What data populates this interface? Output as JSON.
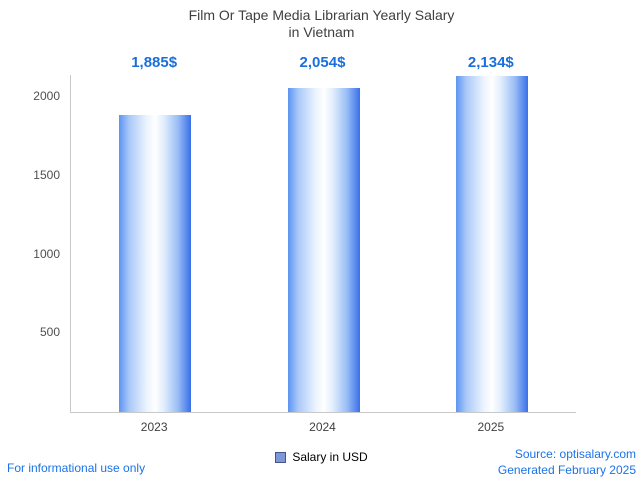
{
  "chart": {
    "title_line1": "Film Or Tape Media Librarian Yearly Salary",
    "title_line2": "in Vietnam"
  },
  "chart_data": {
    "type": "bar",
    "title": "Film Or Tape Media Librarian Yearly Salary in Vietnam",
    "categories": [
      "2023",
      "2024",
      "2025"
    ],
    "series": [
      {
        "name": "Salary in USD",
        "values": [
          1885,
          2054,
          2134
        ]
      }
    ],
    "value_labels": [
      "1,885$",
      "2,054$",
      "2,134$"
    ],
    "xlabel": "",
    "ylabel": "",
    "yticks": [
      500,
      1000,
      1500,
      2000
    ],
    "ylim": [
      0,
      2140
    ],
    "grid": false,
    "legend_position": "bottom",
    "bar_style": "horizontal blue-white-blue cylinder gradient"
  },
  "legend": {
    "label": "Salary in USD"
  },
  "footer": {
    "left": "For informational use only",
    "source": "Source: optisalary.com",
    "generated": "Generated February 2025"
  },
  "colors": {
    "accent_blue": "#1a73e8",
    "value_label_blue": "#1a6fdb",
    "bar_edge_left": "#5b94f2",
    "bar_edge_right": "#3a6fe9",
    "bar_center": "#ffffff",
    "axis_line": "#c9c9c9",
    "title_text": "#3f3f3f",
    "legend_swatch_fill": "#7e97d6",
    "legend_swatch_border": "#45548c"
  }
}
